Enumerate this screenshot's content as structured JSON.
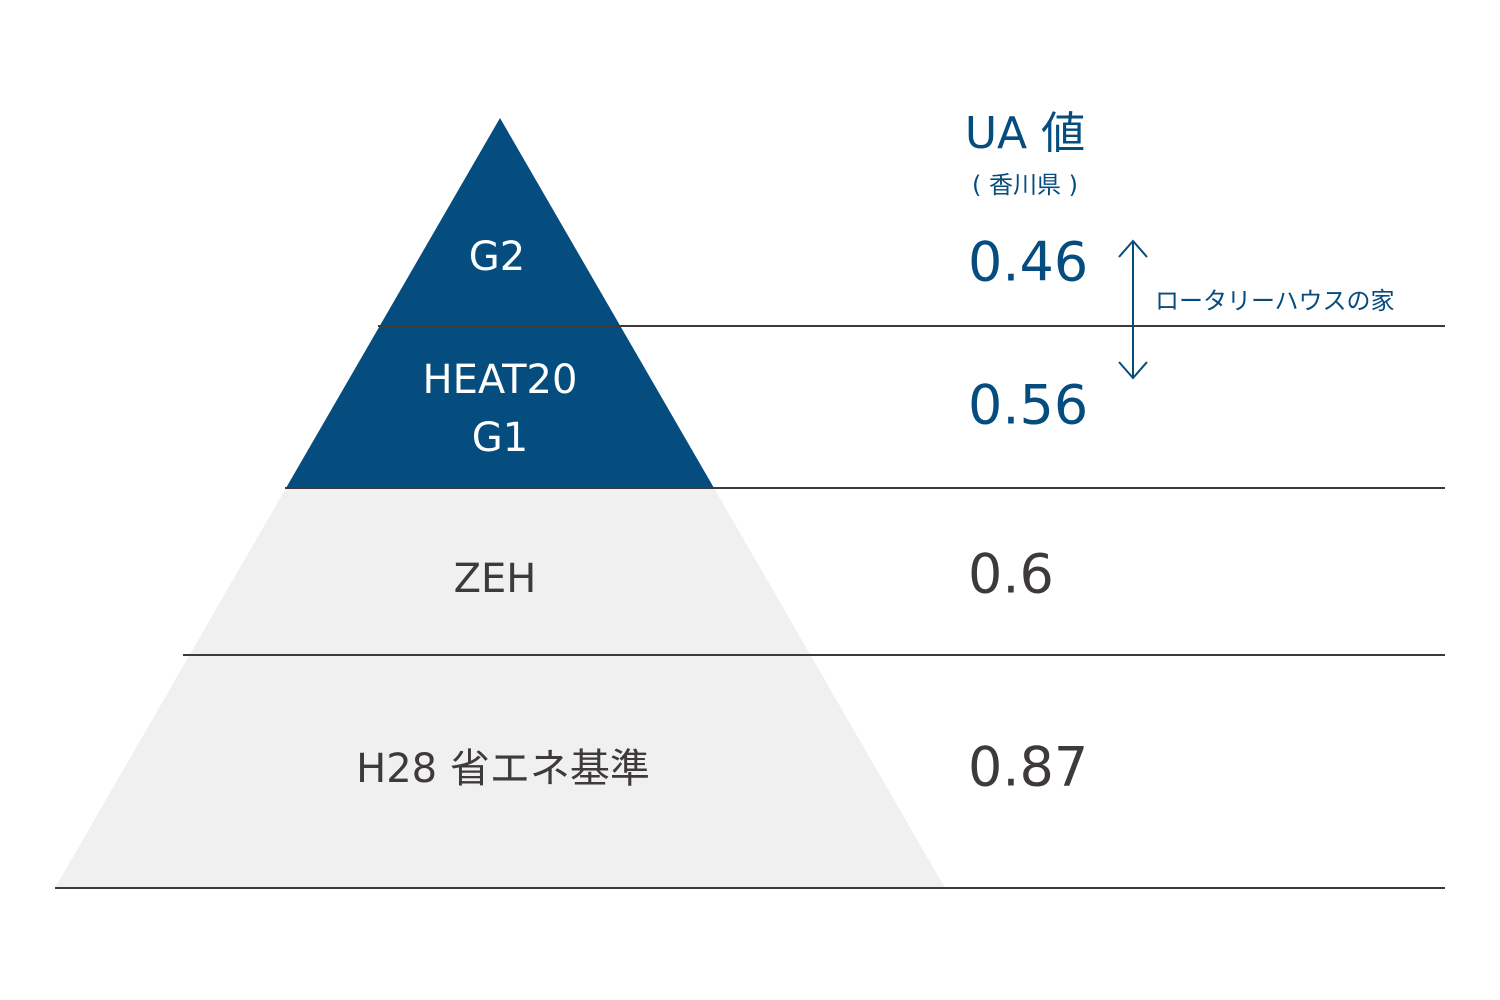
{
  "header": {
    "title": "UA 値",
    "subtitle": "( 香川県 )"
  },
  "annotation": "ロータリーハウスの家",
  "tiers": [
    {
      "label": [
        "G2"
      ],
      "value": 0.46
    },
    {
      "label": [
        "HEAT20",
        "G1"
      ],
      "value": 0.56
    },
    {
      "label": [
        "ZEH"
      ],
      "value": 0.6
    },
    {
      "label": [
        "H28 省エネ基準"
      ],
      "value": 0.87
    }
  ]
}
